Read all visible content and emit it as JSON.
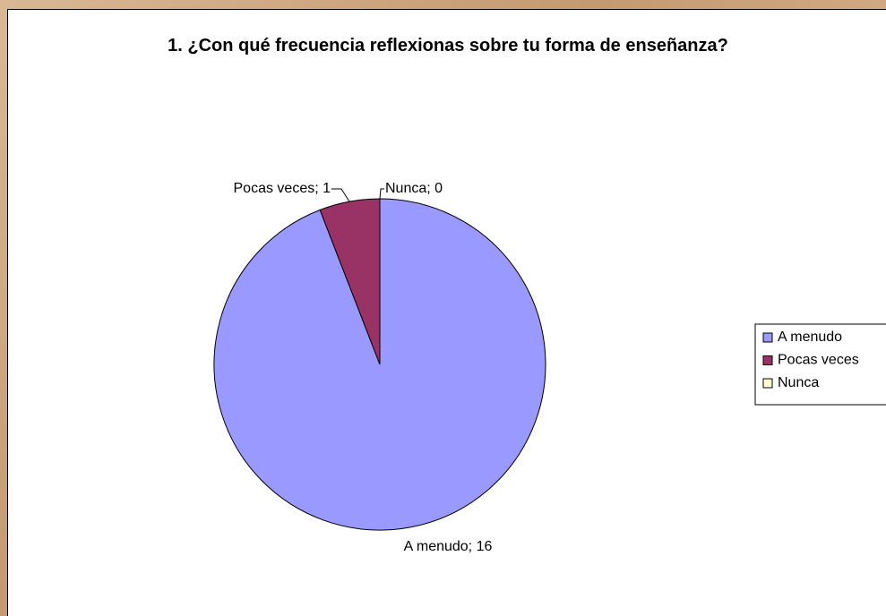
{
  "chart_data": {
    "type": "pie",
    "title": "1. ¿Con qué frecuencia reflexionas sobre tu forma de enseñanza?",
    "categories": [
      "A menudo",
      "Pocas veces",
      "Nunca"
    ],
    "values": [
      16,
      1,
      0
    ],
    "value_labels": [
      "A menudo; 16",
      "Pocas veces; 1",
      "Nunca; 0"
    ],
    "colors": [
      "#9999ff",
      "#993366",
      "#ffffcc"
    ],
    "legend": "right"
  }
}
